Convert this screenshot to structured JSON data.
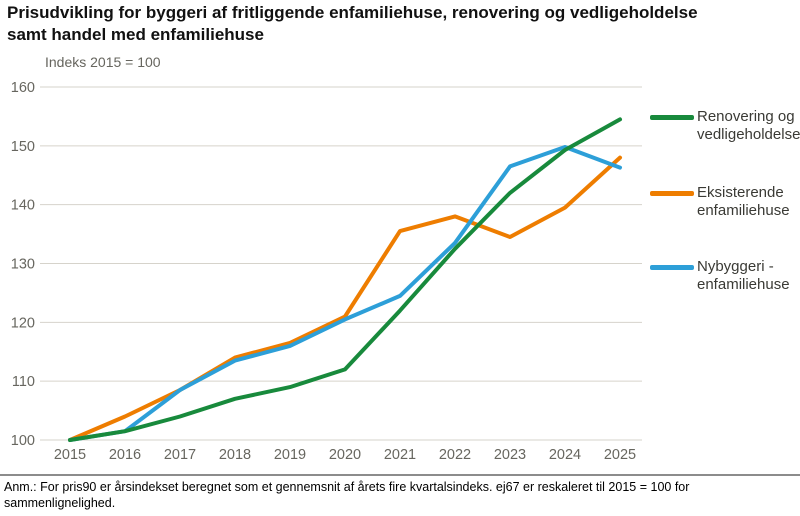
{
  "title": "Prisudvikling for byggeri af fritliggende enfamiliehuse, renovering og vedligeholdelse samt handel med enfamiliehuse",
  "subtitle": "Indeks 2015 = 100",
  "footnote": "Anm.: For pris90 er årsindekset beregnet som et gennemsnit af årets fire kvartalsindeks. ej67 er reskaleret til 2015 = 100 for sammenlignelighed.",
  "colors": {
    "green": "#188a3c",
    "orange": "#ee7d00",
    "blue": "#2d9fd8",
    "grid": "#d6d3cb",
    "axis_text": "#67665f",
    "legend_text": "#3a3a35",
    "divider": "#8c8c8c"
  },
  "chart_data": {
    "type": "line",
    "title": "Prisudvikling for byggeri af fritliggende enfamiliehuse, renovering og vedligeholdelse samt handel med enfamiliehuse",
    "ylabel": "Indeks 2015 = 100",
    "xlabel": "",
    "categories": [
      "2015",
      "2016",
      "2017",
      "2018",
      "2019",
      "2020",
      "2021",
      "2022",
      "2023",
      "2024",
      "2025"
    ],
    "series": [
      {
        "name": "Renovering og vedligeholdelse",
        "color": "#188a3c",
        "values": [
          100,
          101.5,
          104,
          107,
          109,
          112,
          122,
          132.5,
          142,
          149.3,
          154.5
        ]
      },
      {
        "name": "Eksisterende enfamiliehuse",
        "color": "#ee7d00",
        "values": [
          100,
          104,
          108.5,
          114,
          116.5,
          121,
          135.5,
          138,
          134.5,
          139.5,
          148
        ]
      },
      {
        "name": "Nybyggeri - enfamiliehuse",
        "color": "#2d9fd8",
        "values": [
          100,
          101.5,
          108.5,
          113.5,
          116,
          120.5,
          124.5,
          133.5,
          146.5,
          149.8,
          146.3
        ]
      }
    ],
    "ylim": [
      100,
      160
    ],
    "ytick_step": 10,
    "grid": true,
    "legend_position": "right"
  }
}
